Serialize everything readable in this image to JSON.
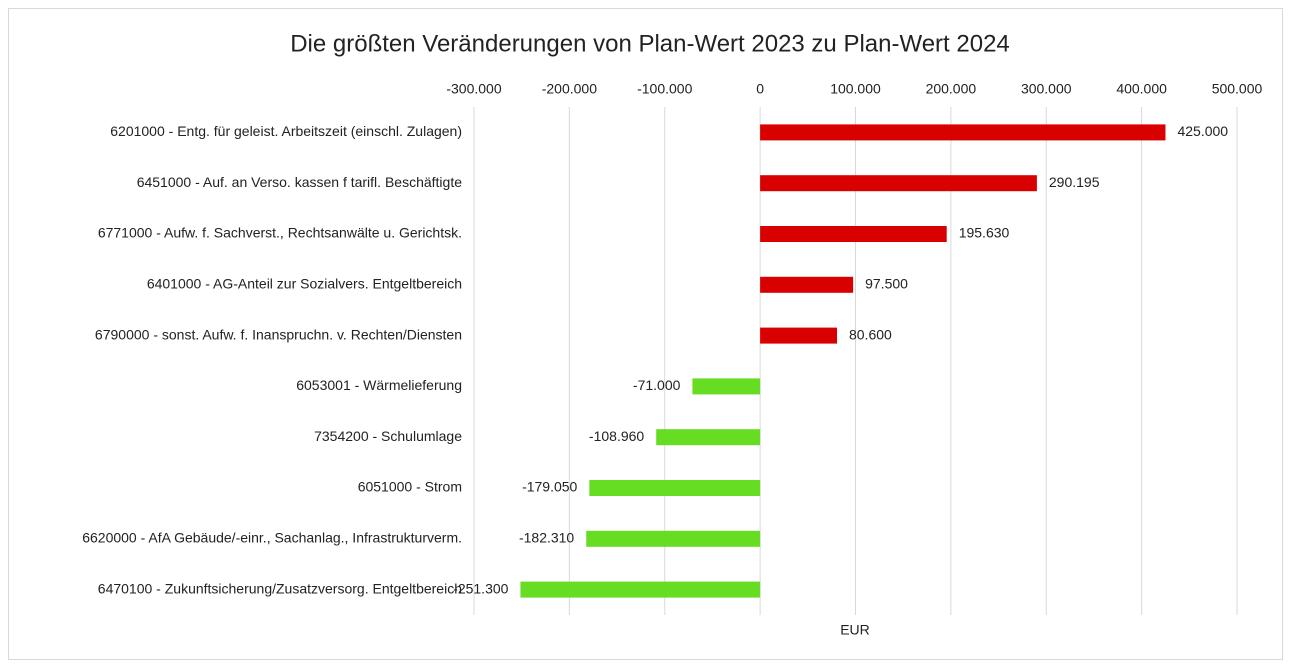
{
  "chart_data": {
    "type": "barh",
    "title": "Die größten Veränderungen von  Plan-Wert 2023  zu  Plan-Wert 2024",
    "xlabel": "EUR",
    "categories": [
      "6201000 - Entg. für geleist. Arbeitszeit (einschl. Zulagen)",
      "6451000 - Auf. an Verso. kassen f tarifl. Beschäftigte",
      "6771000 - Aufw. f. Sachverst., Rechtsanwälte u. Gerichtsk.",
      "6401000 - AG-Anteil zur Sozialvers. Entgeltbereich",
      "6790000 - sonst. Aufw. f. Inanspruchn. v. Rechten/Diensten",
      "6053001 - Wärmelieferung",
      "7354200 - Schulumlage",
      "6051000 - Strom",
      "6620000 - AfA Gebäude/-einr., Sachanlag., Infrastrukturverm.",
      "6470100 - Zukunftsicherung/Zusatzversorg. Entgeltbereich"
    ],
    "values": [
      425000,
      290195,
      195630,
      97500,
      80600,
      -71000,
      -108960,
      -179050,
      -182310,
      -251300
    ],
    "value_labels": [
      "425.000",
      "290.195",
      "195.630",
      "97.500",
      "80.600",
      "-71.000",
      "-108.960",
      "-179.050",
      "-182.310",
      "-251.300"
    ],
    "colors": [
      "#d90000",
      "#d90000",
      "#d90000",
      "#d90000",
      "#d90000",
      "#66dd22",
      "#66dd22",
      "#66dd22",
      "#66dd22",
      "#66dd22"
    ],
    "xlim": [
      -300000,
      500000
    ],
    "xticks": [
      {
        "value": -300000,
        "label": "-300.000"
      },
      {
        "value": -200000,
        "label": "-200.000"
      },
      {
        "value": -100000,
        "label": "-100.000"
      },
      0,
      {
        "value": 100000,
        "label": "100.000"
      },
      {
        "value": 200000,
        "label": "200.000"
      },
      {
        "value": 300000,
        "label": "300.000"
      },
      {
        "value": 400000,
        "label": "400.000"
      },
      {
        "value": 500000,
        "label": "500.000"
      }
    ],
    "grid": true
  }
}
